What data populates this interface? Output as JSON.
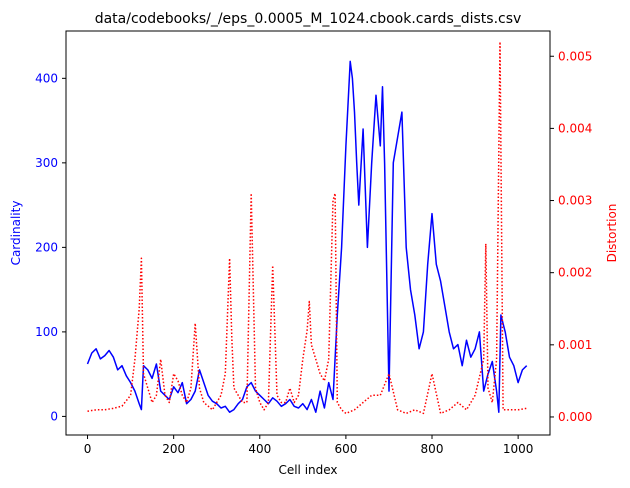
{
  "chart_data": {
    "type": "line",
    "title": "data/codebooks/_/eps_0.0005_M_1024.cbook.cards_dists.csv",
    "xlabel": "Cell index",
    "ylabel": "Cardinality",
    "ylabel_right": "Distortion",
    "xlim": [
      -50,
      1074
    ],
    "ylim": [
      -22,
      456
    ],
    "ylim_right": [
      -0.00025,
      0.00535
    ],
    "xticks": [
      0,
      200,
      400,
      600,
      800,
      1000
    ],
    "yticks": [
      0,
      100,
      200,
      300,
      400
    ],
    "yticks_right": [
      0.0,
      0.001,
      0.002,
      0.003,
      0.004,
      0.005
    ],
    "grid": false,
    "colors": {
      "left_axis": "#0000ff",
      "right_axis": "#ff0000",
      "axes": "#000000"
    },
    "series": [
      {
        "axis": "left",
        "style": "solid",
        "color": "#0000ff",
        "x": [
          0,
          10,
          20,
          30,
          40,
          50,
          60,
          70,
          80,
          90,
          100,
          110,
          120,
          125,
          130,
          140,
          150,
          160,
          170,
          180,
          190,
          200,
          210,
          220,
          230,
          240,
          250,
          260,
          270,
          280,
          290,
          300,
          310,
          320,
          330,
          340,
          350,
          360,
          370,
          380,
          390,
          400,
          410,
          420,
          430,
          440,
          450,
          460,
          470,
          480,
          490,
          500,
          510,
          520,
          530,
          540,
          550,
          560,
          570,
          580,
          590,
          600,
          610,
          615,
          620,
          625,
          630,
          640,
          650,
          660,
          670,
          680,
          685,
          690,
          700,
          710,
          720,
          730,
          740,
          750,
          760,
          770,
          780,
          790,
          800,
          810,
          820,
          830,
          840,
          850,
          860,
          870,
          880,
          890,
          900,
          910,
          920,
          930,
          940,
          950,
          955,
          960,
          970,
          980,
          990,
          1000,
          1010,
          1020
        ],
        "values": [
          62,
          75,
          80,
          68,
          72,
          78,
          70,
          55,
          60,
          48,
          40,
          30,
          15,
          8,
          60,
          55,
          45,
          62,
          30,
          25,
          20,
          35,
          28,
          40,
          15,
          20,
          30,
          55,
          40,
          25,
          18,
          15,
          10,
          12,
          5,
          8,
          15,
          20,
          35,
          40,
          30,
          25,
          20,
          15,
          22,
          18,
          12,
          15,
          20,
          12,
          10,
          15,
          8,
          20,
          5,
          30,
          10,
          40,
          20,
          120,
          200,
          320,
          420,
          400,
          360,
          300,
          250,
          340,
          200,
          300,
          380,
          320,
          390,
          300,
          30,
          300,
          330,
          360,
          200,
          150,
          120,
          80,
          100,
          180,
          240,
          180,
          160,
          130,
          100,
          80,
          85,
          60,
          90,
          70,
          80,
          100,
          30,
          50,
          65,
          30,
          5,
          120,
          100,
          70,
          60,
          40,
          55,
          60
        ]
      },
      {
        "axis": "right",
        "style": "dotted",
        "color": "#ff0000",
        "x": [
          0,
          20,
          40,
          60,
          80,
          100,
          110,
          120,
          125,
          130,
          140,
          150,
          160,
          170,
          180,
          190,
          200,
          210,
          220,
          230,
          240,
          250,
          260,
          270,
          280,
          290,
          300,
          310,
          320,
          330,
          335,
          340,
          350,
          360,
          370,
          380,
          390,
          400,
          410,
          420,
          430,
          440,
          450,
          460,
          470,
          480,
          490,
          500,
          510,
          515,
          520,
          530,
          540,
          550,
          560,
          570,
          575,
          580,
          590,
          600,
          620,
          640,
          660,
          680,
          700,
          720,
          740,
          760,
          780,
          800,
          820,
          840,
          860,
          880,
          900,
          920,
          925,
          930,
          940,
          950,
          958,
          965,
          980,
          1000,
          1020
        ],
        "values": [
          8e-05,
          0.0001,
          0.0001,
          0.00012,
          0.00015,
          0.0003,
          0.0008,
          0.0015,
          0.0022,
          0.0006,
          0.0004,
          0.0002,
          0.0003,
          0.0008,
          0.0003,
          0.0002,
          0.0006,
          0.0005,
          0.0003,
          0.0002,
          0.0004,
          0.0013,
          0.0004,
          0.0002,
          0.00015,
          0.0001,
          0.0002,
          0.0003,
          0.0006,
          0.0022,
          0.0011,
          0.0004,
          0.0003,
          0.0002,
          0.0002,
          0.0031,
          0.0004,
          0.0002,
          0.0001,
          0.0002,
          0.0021,
          0.0003,
          0.0002,
          0.0002,
          0.0004,
          0.0002,
          0.0003,
          0.0008,
          0.0012,
          0.0016,
          0.001,
          0.0008,
          0.0006,
          0.0005,
          0.0008,
          0.003,
          0.0031,
          0.0002,
          0.0001,
          5e-05,
          0.0001,
          0.0002,
          0.0003,
          0.0003,
          0.0006,
          0.0001,
          5e-05,
          0.0001,
          5e-05,
          0.0006,
          5e-05,
          0.0001,
          0.0002,
          0.0001,
          0.0003,
          0.0008,
          0.0024,
          0.0004,
          0.0002,
          0.0008,
          0.0052,
          0.0001,
          0.0001,
          0.0001,
          0.00012
        ]
      }
    ]
  }
}
